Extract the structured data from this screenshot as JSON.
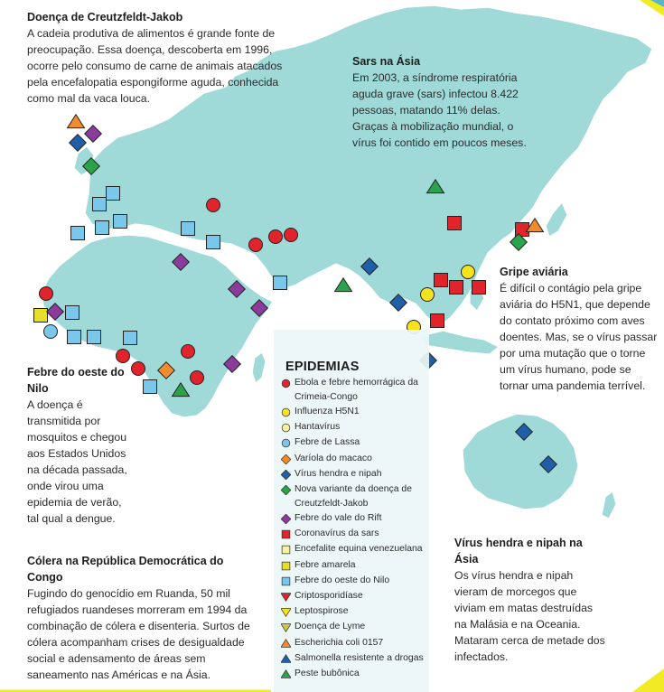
{
  "legend": {
    "title": "EPIDEMIAS",
    "items": [
      {
        "label": "Ebola e febre hemorrágica da Crimeia-Congo",
        "shape": "circle",
        "color": "#e1232b"
      },
      {
        "label": "Influenza H5N1",
        "shape": "circle",
        "color": "#f7e21e"
      },
      {
        "label": "Hantavírus",
        "shape": "circle",
        "color": "#f6f3a0"
      },
      {
        "label": "Febre de Lassa",
        "shape": "circle",
        "color": "#7ac7ec"
      },
      {
        "label": "Varíola do macaco",
        "shape": "diamond",
        "color": "#f28b2a"
      },
      {
        "label": "Vírus hendra e nipah",
        "shape": "diamond",
        "color": "#1f5fa8"
      },
      {
        "label": "Nova variante da doença de Creutzfeldt-Jakob",
        "shape": "diamond",
        "color": "#2aa34a"
      },
      {
        "label": "Febre do vale do Rift",
        "shape": "diamond",
        "color": "#8a3b9c"
      },
      {
        "label": "Coronavírus da sars",
        "shape": "square",
        "color": "#e1232b"
      },
      {
        "label": "Encefalite equina venezuelana",
        "shape": "square",
        "color": "#f6f3a0"
      },
      {
        "label": "Febre amarela",
        "shape": "square",
        "color": "#e6de2a"
      },
      {
        "label": "Febre do oeste do Nilo",
        "shape": "square",
        "color": "#7ac7ec"
      },
      {
        "label": "Criptosporidíase",
        "shape": "tri-down",
        "color": "#e1232b"
      },
      {
        "label": "Leptospirose",
        "shape": "tri-down",
        "color": "#f7e21e"
      },
      {
        "label": "Doença de Lyme",
        "shape": "tri-down",
        "color": "#d3c83c"
      },
      {
        "label": "Escherichia coli 0157",
        "shape": "tri-up",
        "color": "#f28b2a"
      },
      {
        "label": "Salmonella resistente a drogas",
        "shape": "tri-up",
        "color": "#1f5fa8"
      },
      {
        "label": "Peste bubônica",
        "shape": "tri-up",
        "color": "#2aa34a"
      }
    ]
  },
  "notes": {
    "cjd": {
      "title": "Doença de Creutzfeldt-Jakob",
      "body": "A cadeia produtiva de alimentos é grande fonte de preocupação. Essa doença, descoberta em 1996, ocorre pelo consumo de carne de animais atacados pela encefalopatia espongiforme aguda, conhecida como mal da vaca louca."
    },
    "sars": {
      "title": "Sars na Ásia",
      "body": "Em 2003, a síndrome respiratória aguda grave (sars) infectou 8.422 pessoas, matando 11% delas. Graças à mobilização mundial, o vírus foi contido em poucos meses."
    },
    "gripe": {
      "title": "Gripe aviária",
      "body": "É difícil o contágio pela gripe aviária do H5N1, que depende do contato próximo com aves doentes. Mas, se o vírus passar por uma mutação que o torne um vírus humano, pode se tornar uma pandemia terrível."
    },
    "febre": {
      "title": "Febre do oeste do Nilo",
      "body": "A doença é transmitida por mosquitos e chegou aos Estados Unidos na década passada, onde virou uma epidemia de verão, tal qual a dengue."
    },
    "colera": {
      "title": "Cólera na República Democrática do Congo",
      "body": "Fugindo do genocídio em Ruanda, 50 mil refugiados ruandeses morreram em 1994 da combinação de cólera e disenteria. Surtos de cólera acompanham crises de desigualdade social e adensamento de áreas sem saneamento nas Américas e na Ásia."
    },
    "hendra": {
      "title": "Vírus hendra e nipah na Ásia",
      "body": "Os vírus hendra e nipah vieram de morcegos que viviam em matas destruídas na Malásia e na Oceania. Mataram cerca de metade dos infectados."
    }
  },
  "colors": {
    "land": "#9fd9d8",
    "border": "#ffffff",
    "accent": "#f2ea25"
  }
}
